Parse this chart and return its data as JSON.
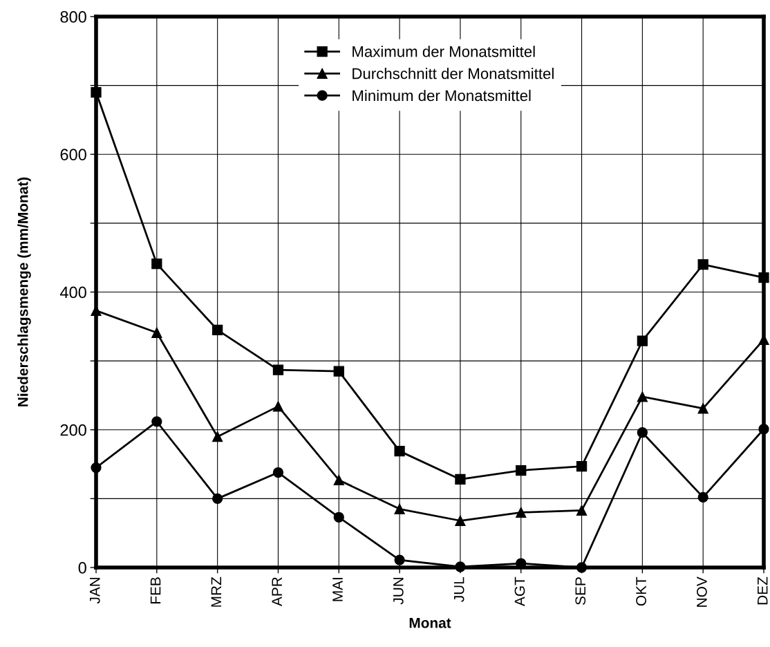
{
  "chart_data": {
    "type": "line",
    "xlabel": "Monat",
    "ylabel": "Niederschlagsmenge (mm/Monat)",
    "categories": [
      "JAN",
      "FEB",
      "MRZ",
      "APR",
      "MAI",
      "JUN",
      "JUL",
      "AGT",
      "SEP",
      "OKT",
      "NOV",
      "DEZ"
    ],
    "series": [
      {
        "name": "Maximum der Monatsmittel",
        "color": "#000000",
        "marker": "square",
        "values": [
          690,
          441,
          345,
          287,
          285,
          169,
          128,
          141,
          147,
          329,
          440,
          421
        ]
      },
      {
        "name": "Durchschnitt der Monatsmittel",
        "color": "#000000",
        "marker": "triangle",
        "values": [
          373,
          341,
          190,
          234,
          127,
          85,
          68,
          80,
          83,
          248,
          231,
          331
        ]
      },
      {
        "name": "Minimum der Monatsmittel",
        "color": "#000000",
        "marker": "circle",
        "values": [
          145,
          212,
          100,
          138,
          73,
          11,
          1,
          6,
          0,
          196,
          102,
          201
        ]
      }
    ],
    "ylim": [
      0,
      800
    ],
    "yticks": [
      0,
      {
        "value": 100,
        "label": null
      },
      200,
      {
        "value": 300,
        "label": null
      },
      400,
      {
        "value": 500,
        "label": null
      },
      600,
      {
        "value": 700,
        "label": null
      },
      800
    ],
    "grid": true,
    "legend": "top",
    "line_style": "solid"
  }
}
